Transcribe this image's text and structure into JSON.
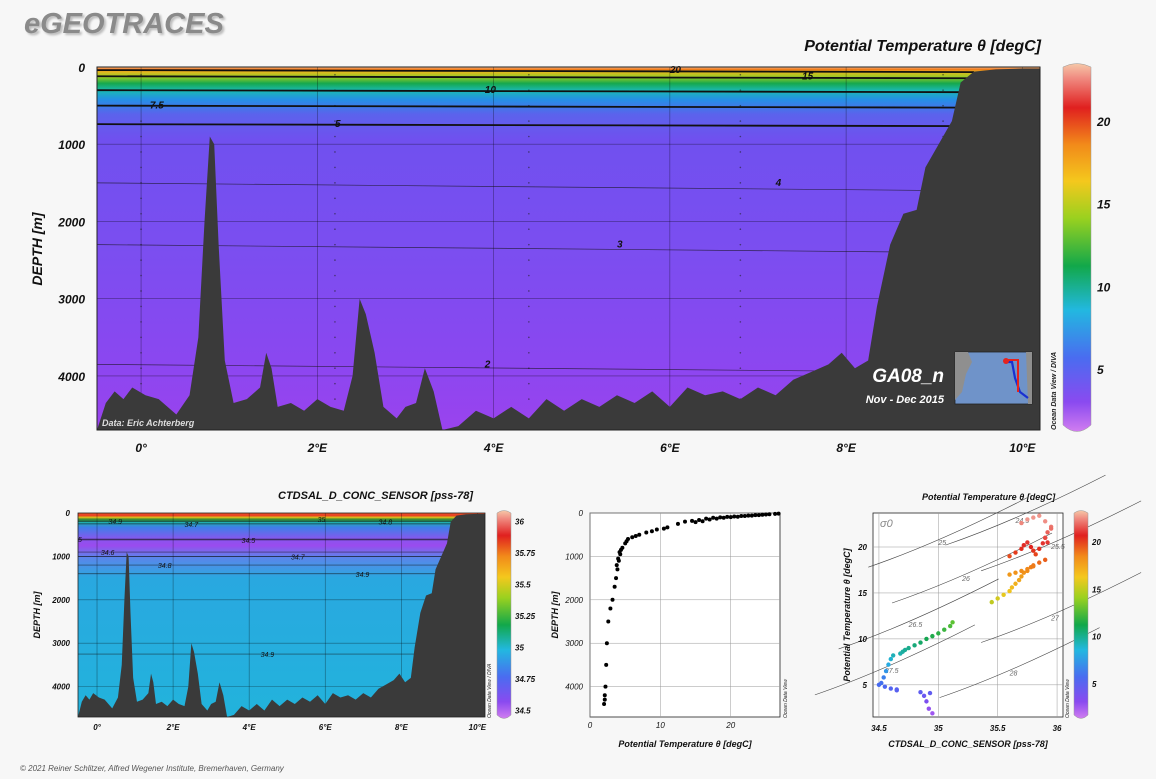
{
  "brand": "eGEOTRACES",
  "copyright": "© 2021 Reiner Schlitzer, Alfred Wegener Institute, Bremerhaven, Germany",
  "section": {
    "name": "GA08_n",
    "dates": "Nov - Dec 2015",
    "credit": "Data: Eric Achterberg"
  },
  "odv_label": "Ocean Data View / DIVA",
  "odv_label_short": "Ocean Data View",
  "colors": {
    "bathymetry": "#3a3a3a",
    "background": "#f7f7f7"
  },
  "chart_data": [
    {
      "type": "heatmap",
      "title": "Potential Temperature θ [degC]",
      "xlabel": "",
      "ylabel": "DEPTH [m]",
      "x_tick_labels": [
        "0°",
        "2°E",
        "4°E",
        "6°E",
        "8°E",
        "10°E"
      ],
      "x_ticks": [
        0,
        2,
        4,
        6,
        8,
        10
      ],
      "xlim": [
        -0.5,
        10.2
      ],
      "y_ticks": [
        0,
        1000,
        2000,
        3000,
        4000
      ],
      "y_tick_labels": [
        "0",
        "1000",
        "2000",
        "3000",
        "4000"
      ],
      "ylim": [
        0,
        4700
      ],
      "colorbar": {
        "ticks": [
          5,
          10,
          15,
          20
        ],
        "range": [
          1.5,
          23.5
        ]
      },
      "contours": [
        {
          "label": "20",
          "depth": 40,
          "at_x": 6
        },
        {
          "label": "15",
          "depth": 120,
          "at_x": 7.5
        },
        {
          "label": "10",
          "depth": 300,
          "at_x": 3.9
        },
        {
          "label": "7.5",
          "depth": 500,
          "at_x": 0.1
        },
        {
          "label": "5",
          "depth": 740,
          "at_x": 2.2
        },
        {
          "label": "4",
          "depth": 1500,
          "at_x": 7.2
        },
        {
          "label": "3",
          "depth": 2300,
          "at_x": 5.4
        },
        {
          "label": "2",
          "depth": 3850,
          "at_x": 3.9
        }
      ],
      "bathymetry": [
        [
          -0.5,
          4700
        ],
        [
          -0.4,
          4350
        ],
        [
          -0.3,
          4200
        ],
        [
          -0.2,
          4300
        ],
        [
          -0.1,
          4150
        ],
        [
          0.05,
          4250
        ],
        [
          0.2,
          4300
        ],
        [
          0.4,
          4500
        ],
        [
          0.55,
          4250
        ],
        [
          0.65,
          3500
        ],
        [
          0.72,
          2000
        ],
        [
          0.78,
          900
        ],
        [
          0.83,
          1000
        ],
        [
          0.88,
          2300
        ],
        [
          0.95,
          3800
        ],
        [
          1.05,
          4350
        ],
        [
          1.2,
          4300
        ],
        [
          1.35,
          4150
        ],
        [
          1.42,
          3700
        ],
        [
          1.48,
          3900
        ],
        [
          1.55,
          4400
        ],
        [
          1.7,
          4350
        ],
        [
          1.85,
          4450
        ],
        [
          2.0,
          4300
        ],
        [
          2.15,
          4400
        ],
        [
          2.3,
          4450
        ],
        [
          2.4,
          4000
        ],
        [
          2.48,
          3000
        ],
        [
          2.55,
          3200
        ],
        [
          2.65,
          3700
        ],
        [
          2.75,
          4400
        ],
        [
          2.9,
          4550
        ],
        [
          3.0,
          4400
        ],
        [
          3.12,
          4350
        ],
        [
          3.22,
          3900
        ],
        [
          3.32,
          4200
        ],
        [
          3.42,
          4700
        ],
        [
          3.6,
          4650
        ],
        [
          3.8,
          4450
        ],
        [
          4.0,
          4550
        ],
        [
          4.2,
          4400
        ],
        [
          4.4,
          4550
        ],
        [
          4.6,
          4300
        ],
        [
          4.8,
          4450
        ],
        [
          5.0,
          4300
        ],
        [
          5.2,
          4400
        ],
        [
          5.4,
          4250
        ],
        [
          5.6,
          4350
        ],
        [
          5.8,
          4200
        ],
        [
          6.0,
          4400
        ],
        [
          6.2,
          4150
        ],
        [
          6.4,
          4250
        ],
        [
          6.6,
          4200
        ],
        [
          6.8,
          4300
        ],
        [
          7.0,
          4150
        ],
        [
          7.2,
          4250
        ],
        [
          7.4,
          4050
        ],
        [
          7.6,
          3950
        ],
        [
          7.8,
          3850
        ],
        [
          7.95,
          3700
        ],
        [
          8.1,
          3900
        ],
        [
          8.25,
          3800
        ],
        [
          8.35,
          3100
        ],
        [
          8.5,
          2300
        ],
        [
          8.65,
          1900
        ],
        [
          8.8,
          1850
        ],
        [
          8.9,
          1300
        ],
        [
          9.05,
          1000
        ],
        [
          9.2,
          700
        ],
        [
          9.3,
          200
        ],
        [
          9.45,
          60
        ],
        [
          9.7,
          30
        ],
        [
          10.0,
          20
        ],
        [
          10.2,
          20
        ],
        [
          10.2,
          4700
        ]
      ],
      "stations_x": [
        0.0,
        2.2,
        4.4,
        6.8,
        9.1
      ]
    },
    {
      "type": "heatmap",
      "title": "CTDSAL_D_CONC_SENSOR [pss-78]",
      "ylabel": "DEPTH [m]",
      "x_tick_labels": [
        "0°",
        "2°E",
        "4°E",
        "6°E",
        "8°E",
        "10°E"
      ],
      "x_ticks": [
        0,
        2,
        4,
        6,
        8,
        10
      ],
      "xlim": [
        -0.5,
        10.2
      ],
      "y_ticks": [
        0,
        1000,
        2000,
        3000,
        4000
      ],
      "y_tick_labels": [
        "0",
        "1000",
        "2000",
        "3000",
        "4000"
      ],
      "ylim": [
        0,
        4700
      ],
      "colorbar": {
        "ticks": [
          34.5,
          34.75,
          35,
          35.25,
          35.5,
          35.75,
          36
        ],
        "tick_labels": [
          "34.5",
          "34.75",
          "35",
          "35.25",
          "35.5",
          "35.75",
          "36"
        ],
        "range": [
          34.45,
          36.1
        ]
      },
      "contours": [
        {
          "label": "34.9",
          "depth": 180,
          "at_x": 0.3
        },
        {
          "label": "34.7",
          "depth": 250,
          "at_x": 2.3
        },
        {
          "label": "35",
          "depth": 140,
          "at_x": 5.8
        },
        {
          "label": "34.8",
          "depth": 200,
          "at_x": 7.4
        },
        {
          "label": "34.5",
          "depth": 620,
          "at_x": 3.8
        },
        {
          "label": "5",
          "depth": 600,
          "at_x": -0.5
        },
        {
          "label": "34.6",
          "depth": 900,
          "at_x": 0.1
        },
        {
          "label": "34.8",
          "depth": 1200,
          "at_x": 1.6
        },
        {
          "label": "34.7",
          "depth": 1000,
          "at_x": 5.1
        },
        {
          "label": "34.9",
          "depth": 1400,
          "at_x": 6.8
        },
        {
          "label": "34.9",
          "depth": 3250,
          "at_x": 4.3
        }
      ]
    },
    {
      "type": "scatter",
      "xlabel": "Potential Temperature θ [degC]",
      "ylabel": "DEPTH [m]",
      "xlim": [
        0,
        27
      ],
      "ylim": [
        0,
        4700
      ],
      "x_ticks": [
        0,
        10,
        20
      ],
      "x_tick_labels": [
        "0",
        "10",
        "20"
      ],
      "y_ticks": [
        0,
        1000,
        2000,
        3000,
        4000
      ],
      "y_tick_labels": [
        "0",
        "1000",
        "2000",
        "3000",
        "4000"
      ],
      "x": [
        2.0,
        2.1,
        2.1,
        2.2,
        2.3,
        2.4,
        2.6,
        2.9,
        3.2,
        3.5,
        3.7,
        3.9,
        4.1,
        4.3,
        4.6,
        5.0,
        5.4,
        6.0,
        7.0,
        8.0,
        9.5,
        11,
        12.5,
        13.5,
        14.5,
        15.5,
        16.5,
        17.5,
        18.5,
        19.5,
        20.5,
        21.5,
        22.5,
        23.5,
        24.5,
        25.5,
        26.3,
        26.8,
        4.0,
        3.8,
        4.2,
        4.4,
        5.2,
        6.5,
        8.8,
        10.5,
        15,
        16,
        17,
        18,
        19,
        20,
        21,
        22,
        23,
        24,
        25
      ],
      "y": [
        4400,
        4300,
        4200,
        4000,
        3500,
        3000,
        2500,
        2200,
        2000,
        1700,
        1500,
        1300,
        1100,
        950,
        800,
        700,
        600,
        560,
        500,
        450,
        380,
        330,
        250,
        200,
        180,
        160,
        130,
        110,
        100,
        90,
        80,
        70,
        60,
        50,
        40,
        30,
        20,
        15,
        1050,
        1200,
        900,
        850,
        650,
        530,
        420,
        360,
        210,
        190,
        150,
        130,
        110,
        95,
        85,
        70,
        60,
        50,
        35
      ]
    },
    {
      "type": "scatter",
      "title": "Potential Temperature θ [degC]",
      "xlabel": "CTDSAL_D_CONC_SENSOR [pss-78]",
      "ylabel": "Potential Temperature θ [degC]",
      "xlim": [
        34.45,
        36.05
      ],
      "ylim": [
        1.5,
        23.7
      ],
      "x_ticks": [
        34.5,
        35,
        35.5,
        36
      ],
      "x_tick_labels": [
        "34.5",
        "35",
        "35.5",
        "36"
      ],
      "y_ticks": [
        5,
        10,
        15,
        20
      ],
      "y_tick_labels": [
        "5",
        "10",
        "15",
        "20"
      ],
      "sigma_label": "σ0",
      "isopycnals": [
        {
          "label": "24.5",
          "at": [
            35.65,
            22.6
          ]
        },
        {
          "label": "25",
          "at": [
            35.0,
            20.2
          ]
        },
        {
          "label": "25.5",
          "at": [
            35.95,
            19.8
          ]
        },
        {
          "label": "26",
          "at": [
            35.2,
            16.3
          ]
        },
        {
          "label": "26.5",
          "at": [
            34.75,
            11.3
          ]
        },
        {
          "label": "27",
          "at": [
            35.95,
            12.0
          ]
        },
        {
          "label": "27.5",
          "at": [
            34.55,
            6.3
          ]
        },
        {
          "label": "28",
          "at": [
            35.6,
            6.0
          ]
        }
      ],
      "colorbar": {
        "ticks": [
          5,
          10,
          15,
          20
        ],
        "range": [
          1.5,
          23.5
        ]
      },
      "x": [
        34.5,
        34.52,
        34.54,
        34.56,
        34.58,
        34.6,
        34.62,
        34.55,
        34.6,
        34.65,
        34.68,
        34.7,
        34.72,
        34.75,
        34.8,
        34.85,
        34.9,
        34.95,
        35.0,
        35.05,
        35.1,
        35.12,
        35.45,
        35.5,
        35.55,
        35.6,
        35.62,
        35.65,
        35.68,
        35.7,
        35.72,
        35.75,
        35.78,
        35.8,
        35.85,
        35.9,
        35.6,
        35.65,
        35.7,
        35.72,
        35.75,
        35.78,
        35.8,
        35.82,
        35.85,
        35.88,
        35.9,
        35.92,
        35.95,
        35.7,
        35.75,
        35.8,
        35.85,
        35.9,
        35.95,
        35.9,
        35.92,
        35.6,
        35.65,
        35.7,
        35.75,
        35.8,
        34.85,
        34.88,
        34.9,
        34.92,
        34.95,
        34.93,
        34.65
      ],
      "y": [
        5.0,
        5.2,
        5.8,
        6.5,
        7.2,
        7.8,
        8.2,
        4.8,
        4.6,
        4.5,
        8.4,
        8.6,
        8.8,
        9.0,
        9.3,
        9.6,
        10.0,
        10.3,
        10.6,
        11.0,
        11.4,
        11.8,
        14.0,
        14.4,
        14.8,
        15.2,
        15.6,
        16.0,
        16.4,
        16.8,
        17.2,
        17.4,
        17.8,
        18.0,
        18.3,
        18.6,
        19.0,
        19.4,
        19.8,
        20.2,
        20.5,
        20.0,
        19.6,
        19.2,
        19.8,
        20.4,
        21.0,
        21.6,
        22.2,
        22.6,
        23.0,
        23.2,
        23.4,
        22.8,
        22.0,
        21.0,
        20.5,
        17.0,
        17.2,
        17.4,
        17.6,
        17.9,
        4.2,
        3.8,
        3.2,
        2.4,
        1.9,
        4.1,
        4.4
      ]
    }
  ]
}
